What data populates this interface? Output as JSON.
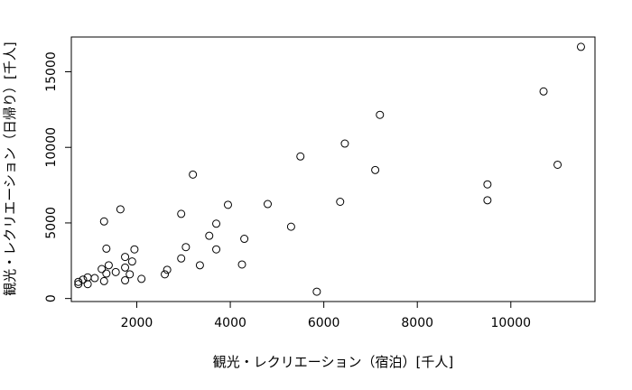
{
  "chart_data": {
    "type": "scatter",
    "title": "",
    "xlabel": "観光・レクリエーション（宿泊）[千人]",
    "ylabel": "観光・レクリエーション（日帰り）[千人]",
    "xlim": [
      600,
      11800
    ],
    "ylim": [
      -200,
      17300
    ],
    "xticks": [
      2000,
      4000,
      6000,
      8000,
      10000
    ],
    "yticks": [
      0,
      5000,
      10000,
      15000
    ],
    "grid": false,
    "legend": "none",
    "marker": "open-circle",
    "points": [
      {
        "x": 1650,
        "y": 5900
      },
      {
        "x": 3200,
        "y": 8200
      },
      {
        "x": 1300,
        "y": 5100
      },
      {
        "x": 2950,
        "y": 5600
      },
      {
        "x": 3950,
        "y": 6200
      },
      {
        "x": 4800,
        "y": 6250
      },
      {
        "x": 5500,
        "y": 9400
      },
      {
        "x": 6450,
        "y": 10250
      },
      {
        "x": 7200,
        "y": 12150
      },
      {
        "x": 7100,
        "y": 8500
      },
      {
        "x": 6350,
        "y": 6400
      },
      {
        "x": 5300,
        "y": 4750
      },
      {
        "x": 3700,
        "y": 4950
      },
      {
        "x": 3550,
        "y": 4150
      },
      {
        "x": 4300,
        "y": 3950
      },
      {
        "x": 3700,
        "y": 3250
      },
      {
        "x": 3050,
        "y": 3400
      },
      {
        "x": 2950,
        "y": 2650
      },
      {
        "x": 3350,
        "y": 2200
      },
      {
        "x": 4250,
        "y": 2250
      },
      {
        "x": 2650,
        "y": 1900
      },
      {
        "x": 2600,
        "y": 1600
      },
      {
        "x": 2100,
        "y": 1300
      },
      {
        "x": 1950,
        "y": 3250
      },
      {
        "x": 1750,
        "y": 2750
      },
      {
        "x": 1900,
        "y": 2450
      },
      {
        "x": 1750,
        "y": 2050
      },
      {
        "x": 1850,
        "y": 1600
      },
      {
        "x": 1750,
        "y": 1200
      },
      {
        "x": 1550,
        "y": 1750
      },
      {
        "x": 1400,
        "y": 2200
      },
      {
        "x": 1350,
        "y": 1650
      },
      {
        "x": 1250,
        "y": 1950
      },
      {
        "x": 1350,
        "y": 3300
      },
      {
        "x": 1300,
        "y": 1150
      },
      {
        "x": 1100,
        "y": 1350
      },
      {
        "x": 950,
        "y": 1400
      },
      {
        "x": 850,
        "y": 1250
      },
      {
        "x": 950,
        "y": 950
      },
      {
        "x": 750,
        "y": 1100
      },
      {
        "x": 750,
        "y": 950
      },
      {
        "x": 5850,
        "y": 450
      },
      {
        "x": 9500,
        "y": 7550
      },
      {
        "x": 9500,
        "y": 6500
      },
      {
        "x": 10700,
        "y": 13700
      },
      {
        "x": 11000,
        "y": 8850
      },
      {
        "x": 11500,
        "y": 16650
      }
    ]
  }
}
